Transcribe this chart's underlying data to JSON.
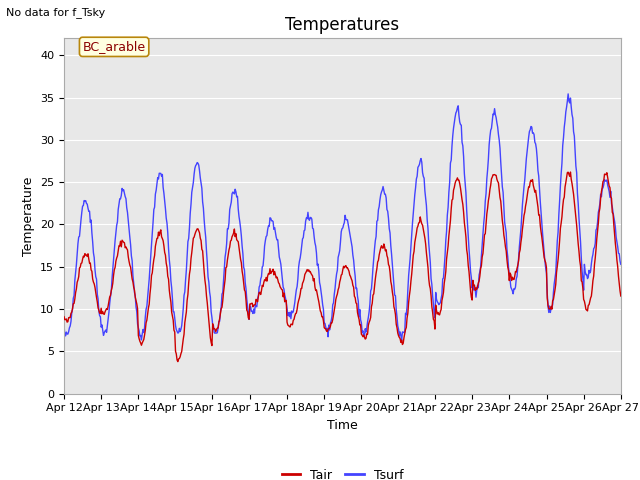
{
  "title": "Temperatures",
  "xlabel": "Time",
  "ylabel": "Temperature",
  "annotation": "No data for f_Tsky",
  "site_label": "BC_arable",
  "ylim": [
    0,
    42
  ],
  "yticks": [
    0,
    5,
    10,
    15,
    20,
    25,
    30,
    35,
    40
  ],
  "x_tick_labels": [
    "Apr 12",
    "Apr 13",
    "Apr 14",
    "Apr 15",
    "Apr 16",
    "Apr 17",
    "Apr 18",
    "Apr 19",
    "Apr 20",
    "Apr 21",
    "Apr 22",
    "Apr 23",
    "Apr 24",
    "Apr 25",
    "Apr 26",
    "Apr 27"
  ],
  "color_tair": "#cc0000",
  "color_tsurf": "#4444ff",
  "background_color": "#e8e8e8",
  "title_fontsize": 12,
  "label_fontsize": 9,
  "tick_fontsize": 8,
  "days": 15,
  "points_per_day": 48,
  "tair_min_base": [
    8.5,
    9.5,
    6.0,
    4.0,
    7.5,
    10.5,
    8.0,
    7.5,
    6.5,
    6.0,
    9.5,
    12.5,
    13.5,
    10.0,
    10.0
  ],
  "tair_max_base": [
    16.5,
    18.0,
    19.0,
    19.5,
    19.0,
    14.5,
    14.5,
    15.0,
    17.5,
    20.5,
    25.5,
    26.0,
    25.0,
    26.0,
    26.0
  ],
  "tsurf_min_base": [
    7.0,
    7.0,
    6.5,
    7.0,
    7.0,
    9.5,
    9.0,
    7.5,
    7.0,
    6.5,
    10.5,
    12.0,
    12.0,
    10.0,
    14.0
  ],
  "tsurf_max_base": [
    23.0,
    24.0,
    26.0,
    27.0,
    24.0,
    20.5,
    21.0,
    20.5,
    24.0,
    27.5,
    33.5,
    33.0,
    31.5,
    35.0,
    25.0
  ]
}
